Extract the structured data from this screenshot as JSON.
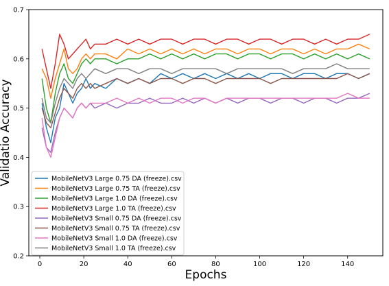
{
  "chart_data": {
    "type": "line",
    "title": "",
    "xlabel": "Epochs",
    "ylabel": "Validatio Accuracy",
    "xlim": [
      -5,
      156
    ],
    "ylim": [
      0.2,
      0.7
    ],
    "xticks": [
      0,
      20,
      40,
      60,
      80,
      100,
      120,
      140
    ],
    "yticks": [
      0.2,
      0.3,
      0.4,
      0.5,
      0.6,
      0.7
    ],
    "grid": false,
    "legend_position": "lower-left",
    "series": [
      {
        "name": "MobileNetV3 Large 0.75 DA (freeze).csv",
        "color": "#1f77b4",
        "x": [
          1,
          3,
          5,
          7,
          9,
          11,
          13,
          15,
          17,
          19,
          21,
          23,
          25,
          30,
          35,
          40,
          45,
          50,
          55,
          60,
          65,
          70,
          75,
          80,
          85,
          90,
          95,
          100,
          105,
          110,
          115,
          120,
          125,
          130,
          135,
          140,
          145,
          150
        ],
        "y": [
          0.51,
          0.46,
          0.43,
          0.48,
          0.5,
          0.55,
          0.53,
          0.51,
          0.53,
          0.54,
          0.56,
          0.54,
          0.55,
          0.54,
          0.56,
          0.55,
          0.56,
          0.55,
          0.57,
          0.56,
          0.57,
          0.56,
          0.57,
          0.56,
          0.57,
          0.56,
          0.57,
          0.56,
          0.57,
          0.57,
          0.56,
          0.57,
          0.57,
          0.56,
          0.57,
          0.57,
          0.56,
          0.57
        ]
      },
      {
        "name": "MobileNetV3 Large 0.75 TA (freeze).csv",
        "color": "#ff7f0e",
        "x": [
          1,
          3,
          5,
          7,
          9,
          11,
          13,
          15,
          17,
          19,
          21,
          23,
          25,
          30,
          35,
          40,
          45,
          50,
          55,
          60,
          65,
          70,
          75,
          80,
          85,
          90,
          95,
          100,
          105,
          110,
          115,
          120,
          125,
          130,
          135,
          140,
          145,
          150
        ],
        "y": [
          0.58,
          0.56,
          0.52,
          0.56,
          0.59,
          0.62,
          0.58,
          0.57,
          0.58,
          0.6,
          0.61,
          0.6,
          0.61,
          0.61,
          0.6,
          0.62,
          0.61,
          0.62,
          0.61,
          0.62,
          0.61,
          0.62,
          0.61,
          0.62,
          0.62,
          0.61,
          0.62,
          0.62,
          0.61,
          0.62,
          0.62,
          0.61,
          0.62,
          0.61,
          0.62,
          0.62,
          0.63,
          0.62
        ]
      },
      {
        "name": "MobileNetV3 Large 1.0 DA (freeze).csv",
        "color": "#2ca02c",
        "x": [
          1,
          3,
          5,
          7,
          9,
          11,
          13,
          15,
          17,
          19,
          21,
          23,
          25,
          30,
          35,
          40,
          45,
          50,
          55,
          60,
          65,
          70,
          75,
          80,
          85,
          90,
          95,
          100,
          105,
          110,
          115,
          120,
          125,
          130,
          135,
          140,
          145,
          150
        ],
        "y": [
          0.56,
          0.5,
          0.47,
          0.53,
          0.57,
          0.59,
          0.56,
          0.55,
          0.57,
          0.59,
          0.6,
          0.59,
          0.6,
          0.6,
          0.59,
          0.6,
          0.6,
          0.61,
          0.6,
          0.61,
          0.6,
          0.61,
          0.6,
          0.61,
          0.61,
          0.6,
          0.61,
          0.61,
          0.6,
          0.61,
          0.61,
          0.6,
          0.61,
          0.6,
          0.61,
          0.6,
          0.61,
          0.6
        ]
      },
      {
        "name": "MobileNetV3 Large 1.0 TA (freeze).csv",
        "color": "#d62728",
        "x": [
          1,
          3,
          5,
          7,
          9,
          11,
          13,
          15,
          17,
          19,
          21,
          23,
          25,
          30,
          35,
          40,
          45,
          50,
          55,
          60,
          65,
          70,
          75,
          80,
          85,
          90,
          95,
          100,
          105,
          110,
          115,
          120,
          125,
          130,
          135,
          140,
          145,
          150
        ],
        "y": [
          0.62,
          0.58,
          0.54,
          0.59,
          0.65,
          0.63,
          0.6,
          0.61,
          0.62,
          0.63,
          0.64,
          0.62,
          0.63,
          0.63,
          0.64,
          0.63,
          0.64,
          0.63,
          0.64,
          0.64,
          0.63,
          0.64,
          0.64,
          0.63,
          0.64,
          0.64,
          0.63,
          0.64,
          0.64,
          0.63,
          0.64,
          0.64,
          0.63,
          0.64,
          0.63,
          0.64,
          0.64,
          0.65
        ]
      },
      {
        "name": "MobileNetV3 Small 0.75 DA (freeze).csv",
        "color": "#9467bd",
        "x": [
          1,
          3,
          5,
          7,
          9,
          11,
          13,
          15,
          17,
          19,
          21,
          23,
          25,
          30,
          35,
          40,
          45,
          50,
          55,
          60,
          65,
          70,
          75,
          80,
          85,
          90,
          95,
          100,
          105,
          110,
          115,
          120,
          125,
          130,
          135,
          140,
          145,
          150
        ],
        "y": [
          0.46,
          0.42,
          0.41,
          0.45,
          0.48,
          0.5,
          0.49,
          0.48,
          0.5,
          0.51,
          0.5,
          0.51,
          0.5,
          0.51,
          0.5,
          0.51,
          0.51,
          0.52,
          0.51,
          0.51,
          0.52,
          0.51,
          0.52,
          0.51,
          0.52,
          0.51,
          0.52,
          0.52,
          0.51,
          0.52,
          0.52,
          0.51,
          0.52,
          0.52,
          0.51,
          0.52,
          0.52,
          0.53
        ]
      },
      {
        "name": "MobileNetV3 Small 0.75 TA (freeze).csv",
        "color": "#8c564b",
        "x": [
          1,
          3,
          5,
          7,
          9,
          11,
          13,
          15,
          17,
          19,
          21,
          23,
          25,
          30,
          35,
          40,
          45,
          50,
          55,
          60,
          65,
          70,
          75,
          80,
          85,
          90,
          95,
          100,
          105,
          110,
          115,
          120,
          125,
          130,
          135,
          140,
          145,
          150
        ],
        "y": [
          0.5,
          0.47,
          0.46,
          0.49,
          0.52,
          0.54,
          0.53,
          0.52,
          0.54,
          0.55,
          0.54,
          0.55,
          0.54,
          0.55,
          0.56,
          0.55,
          0.56,
          0.55,
          0.56,
          0.56,
          0.55,
          0.56,
          0.56,
          0.55,
          0.56,
          0.56,
          0.56,
          0.56,
          0.55,
          0.56,
          0.56,
          0.56,
          0.56,
          0.56,
          0.56,
          0.57,
          0.56,
          0.57
        ]
      },
      {
        "name": "MobileNetV3 Small 1.0 DA (freeze).csv",
        "color": "#e377c2",
        "x": [
          1,
          3,
          5,
          7,
          9,
          11,
          13,
          15,
          17,
          19,
          21,
          23,
          25,
          30,
          35,
          40,
          45,
          50,
          55,
          60,
          65,
          70,
          75,
          80,
          85,
          90,
          95,
          100,
          105,
          110,
          115,
          120,
          125,
          130,
          135,
          140,
          145,
          150
        ],
        "y": [
          0.48,
          0.42,
          0.4,
          0.44,
          0.48,
          0.5,
          0.49,
          0.48,
          0.5,
          0.51,
          0.5,
          0.51,
          0.51,
          0.51,
          0.52,
          0.51,
          0.52,
          0.51,
          0.52,
          0.52,
          0.51,
          0.52,
          0.52,
          0.51,
          0.52,
          0.52,
          0.52,
          0.52,
          0.52,
          0.52,
          0.52,
          0.52,
          0.52,
          0.52,
          0.52,
          0.53,
          0.52,
          0.52
        ]
      },
      {
        "name": "MobileNetV3 Small 1.0 TA (freeze).csv",
        "color": "#7f7f7f",
        "x": [
          1,
          3,
          5,
          7,
          9,
          11,
          13,
          15,
          17,
          19,
          21,
          23,
          25,
          30,
          35,
          40,
          45,
          50,
          55,
          60,
          65,
          70,
          75,
          80,
          85,
          90,
          95,
          100,
          105,
          110,
          115,
          120,
          125,
          130,
          135,
          140,
          145,
          150
        ],
        "y": [
          0.52,
          0.48,
          0.47,
          0.51,
          0.54,
          0.56,
          0.55,
          0.54,
          0.56,
          0.57,
          0.56,
          0.57,
          0.58,
          0.57,
          0.58,
          0.58,
          0.57,
          0.58,
          0.58,
          0.57,
          0.58,
          0.58,
          0.58,
          0.58,
          0.57,
          0.58,
          0.58,
          0.58,
          0.58,
          0.58,
          0.57,
          0.58,
          0.58,
          0.58,
          0.59,
          0.58,
          0.58,
          0.58
        ]
      }
    ]
  }
}
